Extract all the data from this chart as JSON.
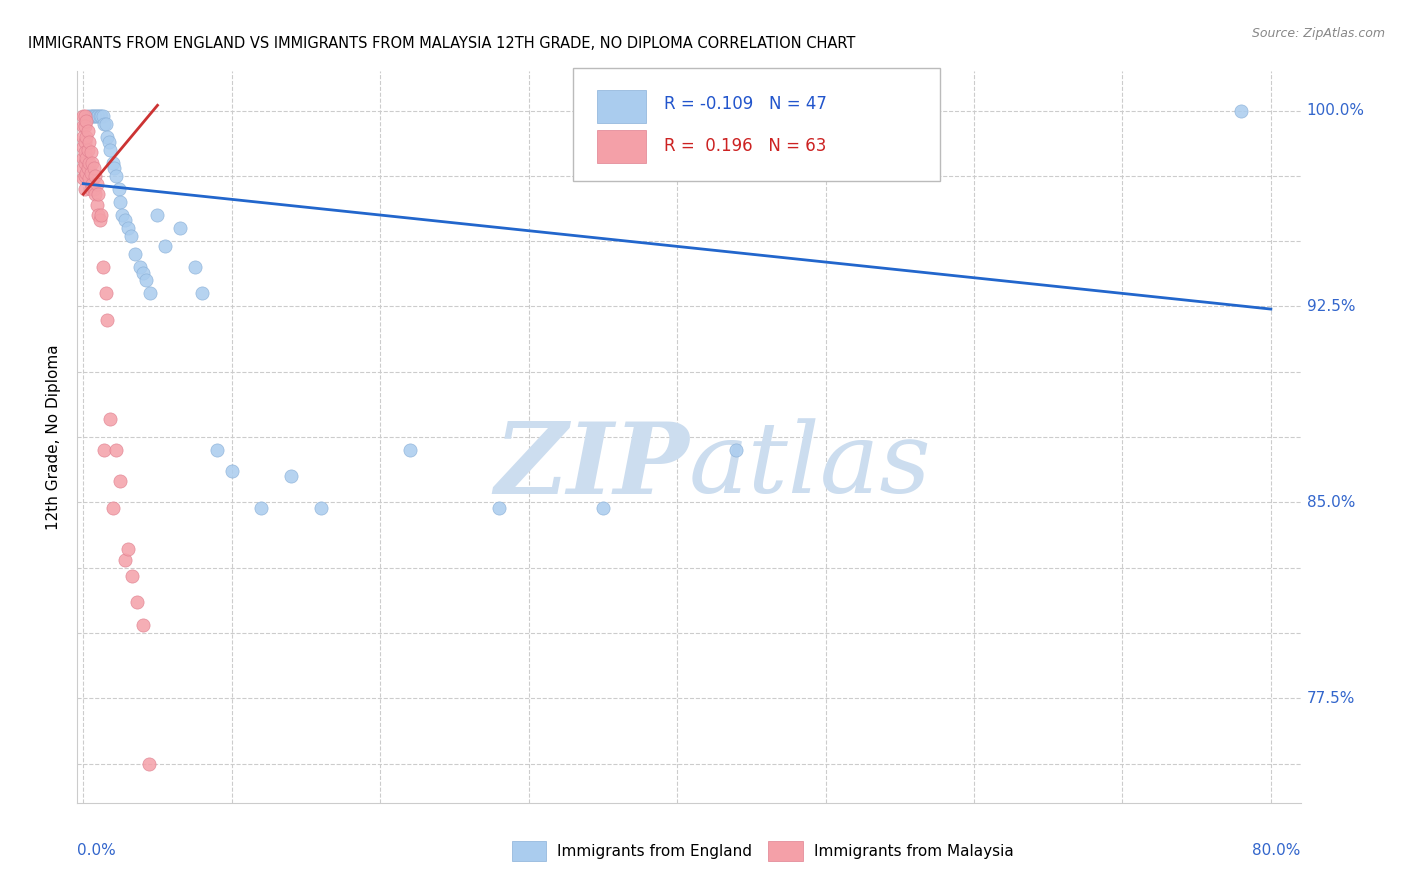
{
  "title": "IMMIGRANTS FROM ENGLAND VS IMMIGRANTS FROM MALAYSIA 12TH GRADE, NO DIPLOMA CORRELATION CHART",
  "source": "Source: ZipAtlas.com",
  "ylabel": "12th Grade, No Diploma",
  "ylim": [
    0.735,
    1.015
  ],
  "xlim": [
    -0.004,
    0.82
  ],
  "color_england": "#aaccee",
  "color_malaysia": "#f4a0a8",
  "trend_england_color": "#2266cc",
  "trend_malaysia_color": "#cc3333",
  "legend_england_R": "-0.109",
  "legend_england_N": "47",
  "legend_malaysia_R": "0.196",
  "legend_malaysia_N": "63",
  "ytick_labeled": [
    0.775,
    0.85,
    0.925,
    1.0
  ],
  "ytick_labeled_str": [
    "77.5%",
    "85.0%",
    "92.5%",
    "100.0%"
  ],
  "england_x": [
    0.003,
    0.005,
    0.006,
    0.007,
    0.008,
    0.009,
    0.01,
    0.011,
    0.012,
    0.013,
    0.014,
    0.015,
    0.016,
    0.017,
    0.018,
    0.02,
    0.021,
    0.022,
    0.024,
    0.025,
    0.026,
    0.028,
    0.03,
    0.032,
    0.035,
    0.038,
    0.04,
    0.042,
    0.045,
    0.05,
    0.055,
    0.065,
    0.075,
    0.08,
    0.09,
    0.1,
    0.12,
    0.14,
    0.16,
    0.22,
    0.28,
    0.35,
    0.44,
    0.78
  ],
  "england_y": [
    0.998,
    0.998,
    0.998,
    0.998,
    0.998,
    0.998,
    0.998,
    0.998,
    0.998,
    0.998,
    0.995,
    0.995,
    0.99,
    0.988,
    0.985,
    0.98,
    0.978,
    0.975,
    0.97,
    0.965,
    0.96,
    0.958,
    0.955,
    0.952,
    0.945,
    0.94,
    0.938,
    0.935,
    0.93,
    0.96,
    0.948,
    0.955,
    0.94,
    0.93,
    0.87,
    0.862,
    0.848,
    0.86,
    0.848,
    0.87,
    0.848,
    0.848,
    0.87,
    1.0
  ],
  "malaysia_x": [
    0.0,
    0.0,
    0.0,
    0.0,
    0.0,
    0.0,
    0.0,
    0.001,
    0.001,
    0.001,
    0.001,
    0.001,
    0.001,
    0.001,
    0.002,
    0.002,
    0.002,
    0.002,
    0.003,
    0.003,
    0.003,
    0.004,
    0.004,
    0.004,
    0.005,
    0.005,
    0.005,
    0.006,
    0.006,
    0.007,
    0.007,
    0.008,
    0.008,
    0.009,
    0.009,
    0.01,
    0.01,
    0.011,
    0.012,
    0.013,
    0.014,
    0.015,
    0.016,
    0.018,
    0.02,
    0.022,
    0.025,
    0.028,
    0.03,
    0.033,
    0.036,
    0.04,
    0.044
  ],
  "malaysia_y": [
    0.998,
    0.994,
    0.99,
    0.986,
    0.982,
    0.978,
    0.974,
    0.998,
    0.994,
    0.988,
    0.984,
    0.98,
    0.975,
    0.97,
    0.996,
    0.99,
    0.982,
    0.976,
    0.992,
    0.985,
    0.978,
    0.988,
    0.98,
    0.974,
    0.984,
    0.976,
    0.97,
    0.98,
    0.972,
    0.978,
    0.97,
    0.975,
    0.968,
    0.972,
    0.964,
    0.968,
    0.96,
    0.958,
    0.96,
    0.94,
    0.87,
    0.93,
    0.92,
    0.882,
    0.848,
    0.87,
    0.858,
    0.828,
    0.832,
    0.822,
    0.812,
    0.803,
    0.75
  ],
  "eng_trend_x0": 0.0,
  "eng_trend_x1": 0.8,
  "eng_trend_y0": 0.972,
  "eng_trend_y1": 0.924,
  "mal_trend_x0": 0.0,
  "mal_trend_x1": 0.05,
  "mal_trend_y0": 0.968,
  "mal_trend_y1": 1.002
}
